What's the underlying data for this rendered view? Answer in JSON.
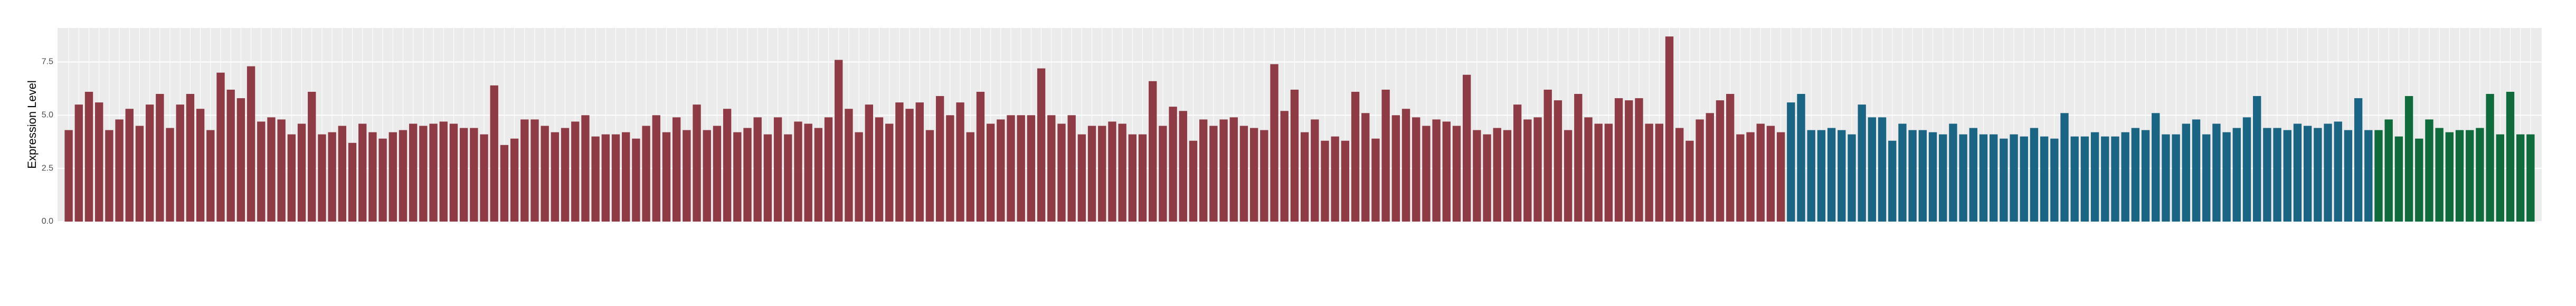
{
  "chart_data": {
    "type": "bar",
    "y_label": "Expression Level",
    "ylim": [
      0,
      9.1
    ],
    "yticks": [
      {
        "value": 0,
        "label": "0.0"
      },
      {
        "value": 2.5,
        "label": "2.5"
      },
      {
        "value": 5,
        "label": "5.0"
      },
      {
        "value": 7.5,
        "label": "7.5"
      }
    ],
    "grid": true,
    "series": [
      {
        "color": "#8e3b46",
        "values": [
          4.3,
          5.5,
          6.1,
          5.6,
          4.3,
          4.8,
          5.3,
          4.5,
          5.5,
          6.0,
          4.4,
          5.5,
          6.0,
          5.3,
          4.3,
          7.0,
          6.2,
          5.8,
          7.3,
          4.7,
          4.9,
          4.8,
          4.1,
          4.6,
          6.1,
          4.1,
          4.2,
          4.5,
          3.7,
          4.6,
          4.2,
          3.9,
          4.2,
          4.3,
          4.6,
          4.5,
          4.6,
          4.7,
          4.6,
          4.4,
          4.4,
          4.1,
          6.4,
          3.6,
          3.9,
          4.8,
          4.8,
          4.5,
          4.2,
          4.4,
          4.7,
          5.0,
          4.0,
          4.1,
          4.1,
          4.2,
          3.9,
          4.5,
          5.0,
          4.2,
          4.9,
          4.3,
          5.5,
          4.3,
          4.5,
          5.3,
          4.2,
          4.4,
          4.9,
          4.1,
          4.9,
          4.1,
          4.7,
          4.6,
          4.4,
          4.9,
          7.6,
          5.3,
          4.2,
          5.5,
          4.9,
          4.6,
          5.6,
          5.3,
          5.6,
          4.3,
          5.9,
          5.0,
          5.6,
          4.2,
          6.1,
          4.6,
          4.8,
          5.0,
          5.0,
          5.0,
          7.2,
          5.0,
          4.6,
          5.0,
          4.1,
          4.5,
          4.5,
          4.7,
          4.6,
          4.1,
          4.1,
          6.6,
          4.5,
          5.4,
          5.2,
          3.8,
          4.8,
          4.5,
          4.8,
          4.9,
          4.5,
          4.4,
          4.3,
          7.4,
          5.2,
          6.2,
          4.2,
          4.8,
          3.8,
          4.0,
          3.8,
          6.1,
          5.1,
          3.9,
          6.2,
          5.0,
          5.3,
          4.9,
          4.5,
          4.8,
          4.7,
          4.5,
          6.9,
          4.3,
          4.1,
          4.4,
          4.3,
          5.5,
          4.8,
          4.9,
          6.2,
          5.7,
          4.3,
          6.0,
          4.9,
          4.6,
          4.6,
          5.8,
          5.7,
          5.8,
          4.6,
          4.6,
          8.7,
          4.4,
          3.8,
          4.8,
          5.1,
          5.7,
          6.0,
          4.1,
          4.2,
          4.6,
          4.5,
          4.2
        ]
      },
      {
        "color": "#1b6584",
        "values": [
          5.6,
          6.0,
          4.3,
          4.3,
          4.4,
          4.3,
          4.1,
          5.5,
          4.9,
          4.9,
          3.8,
          4.6,
          4.3,
          4.3,
          4.2,
          4.1,
          4.6,
          4.1,
          4.4,
          4.1,
          4.1,
          3.9,
          4.1,
          4.0,
          4.4,
          4.0,
          3.9,
          5.1,
          4.0,
          4.0,
          4.2,
          4.0,
          4.0,
          4.2,
          4.4,
          4.3,
          5.1,
          4.1,
          4.1,
          4.6,
          4.8,
          4.1,
          4.6,
          4.2,
          4.4,
          4.9,
          5.9,
          4.4,
          4.4,
          4.3,
          4.6,
          4.5,
          4.4,
          4.6,
          4.7,
          4.3,
          5.8,
          4.3
        ]
      },
      {
        "color": "#0f6b3b",
        "values": [
          4.3,
          4.8,
          4.0,
          5.9,
          3.9,
          4.8,
          4.4,
          4.2,
          4.3,
          4.3,
          4.4,
          6.0,
          4.1,
          6.1,
          4.1,
          4.1
        ]
      }
    ]
  }
}
